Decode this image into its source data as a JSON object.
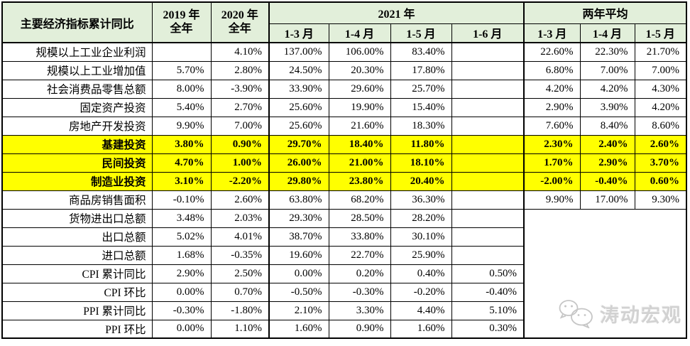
{
  "colors": {
    "header_bg": "#e2efda",
    "highlight_bg": "#ffff00",
    "border": "#000000",
    "watermark_gray": "#c6c6c6"
  },
  "table": {
    "header": {
      "indicator": "主要经济指标累计同比",
      "y2019_line1": "2019 年",
      "y2019_line2": "全年",
      "y2020_line1": "2020 年",
      "y2020_line2": "全年",
      "group_2021": "2021 年",
      "group_avg": "两年平均",
      "months": [
        "1-3 月",
        "1-4 月",
        "1-5 月",
        "1-6 月",
        "1-3 月",
        "1-4 月",
        "1-5 月"
      ]
    },
    "rows": [
      {
        "name": "规模以上工业企业利润",
        "highlight": false,
        "values": [
          "",
          "4.10%",
          "137.00%",
          "106.00%",
          "83.40%",
          "",
          "22.60%",
          "22.30%",
          "21.70%"
        ]
      },
      {
        "name": "规模以上工业增加值",
        "highlight": false,
        "values": [
          "5.70%",
          "2.80%",
          "24.50%",
          "20.30%",
          "17.80%",
          "",
          "6.80%",
          "7.00%",
          "7.00%"
        ]
      },
      {
        "name": "社会消费品零售总额",
        "highlight": false,
        "values": [
          "8.00%",
          "-3.90%",
          "33.90%",
          "29.60%",
          "25.70%",
          "",
          "4.20%",
          "4.20%",
          "4.30%"
        ]
      },
      {
        "name": "固定资产投资",
        "highlight": false,
        "values": [
          "5.40%",
          "2.70%",
          "25.60%",
          "19.90%",
          "15.40%",
          "",
          "2.90%",
          "3.90%",
          "4.20%"
        ]
      },
      {
        "name": "房地产开发投资",
        "highlight": false,
        "values": [
          "9.90%",
          "7.00%",
          "25.60%",
          "21.60%",
          "18.30%",
          "",
          "7.60%",
          "8.40%",
          "8.60%"
        ]
      },
      {
        "name": "基建投资",
        "highlight": true,
        "values": [
          "3.80%",
          "0.90%",
          "29.70%",
          "18.40%",
          "11.80%",
          "",
          "2.30%",
          "2.40%",
          "2.60%"
        ]
      },
      {
        "name": "民间投资",
        "highlight": true,
        "values": [
          "4.70%",
          "1.00%",
          "26.00%",
          "21.00%",
          "18.10%",
          "",
          "1.70%",
          "2.90%",
          "3.70%"
        ]
      },
      {
        "name": "制造业投资",
        "highlight": true,
        "values": [
          "3.10%",
          "-2.20%",
          "29.80%",
          "23.80%",
          "20.40%",
          "",
          "-2.00%",
          "-0.40%",
          "0.60%"
        ]
      },
      {
        "name": "商品房销售面积",
        "highlight": false,
        "values": [
          "-0.10%",
          "2.60%",
          "63.80%",
          "68.20%",
          "36.30%",
          "",
          "9.90%",
          "17.00%",
          "9.30%"
        ]
      },
      {
        "name": "货物进出口总额",
        "highlight": false,
        "merged_right": true,
        "values": [
          "3.48%",
          "2.03%",
          "29.30%",
          "28.50%",
          "28.20%",
          ""
        ]
      },
      {
        "name": "出口总额",
        "highlight": false,
        "values": [
          "5.02%",
          "4.01%",
          "38.70%",
          "33.80%",
          "30.10%",
          ""
        ]
      },
      {
        "name": "进口总额",
        "highlight": false,
        "values": [
          "1.68%",
          "-0.35%",
          "19.60%",
          "22.70%",
          "25.90%",
          ""
        ]
      },
      {
        "name": "CPI 累计同比",
        "highlight": false,
        "values": [
          "2.90%",
          "2.50%",
          "0.00%",
          "0.20%",
          "0.40%",
          "0.50%"
        ]
      },
      {
        "name": "CPI 环比",
        "highlight": false,
        "values": [
          "0.00%",
          "0.70%",
          "-0.50%",
          "-0.30%",
          "-0.20%",
          "-0.40%"
        ]
      },
      {
        "name": "PPI 累计同比",
        "highlight": false,
        "values": [
          "-0.30%",
          "-1.80%",
          "2.10%",
          "3.30%",
          "4.40%",
          "5.10%"
        ]
      },
      {
        "name": "PPI 环比",
        "highlight": false,
        "values": [
          "0.00%",
          "1.10%",
          "1.60%",
          "0.90%",
          "1.60%",
          "0.30%"
        ]
      }
    ]
  },
  "watermark": {
    "text": "涛动宏观"
  }
}
